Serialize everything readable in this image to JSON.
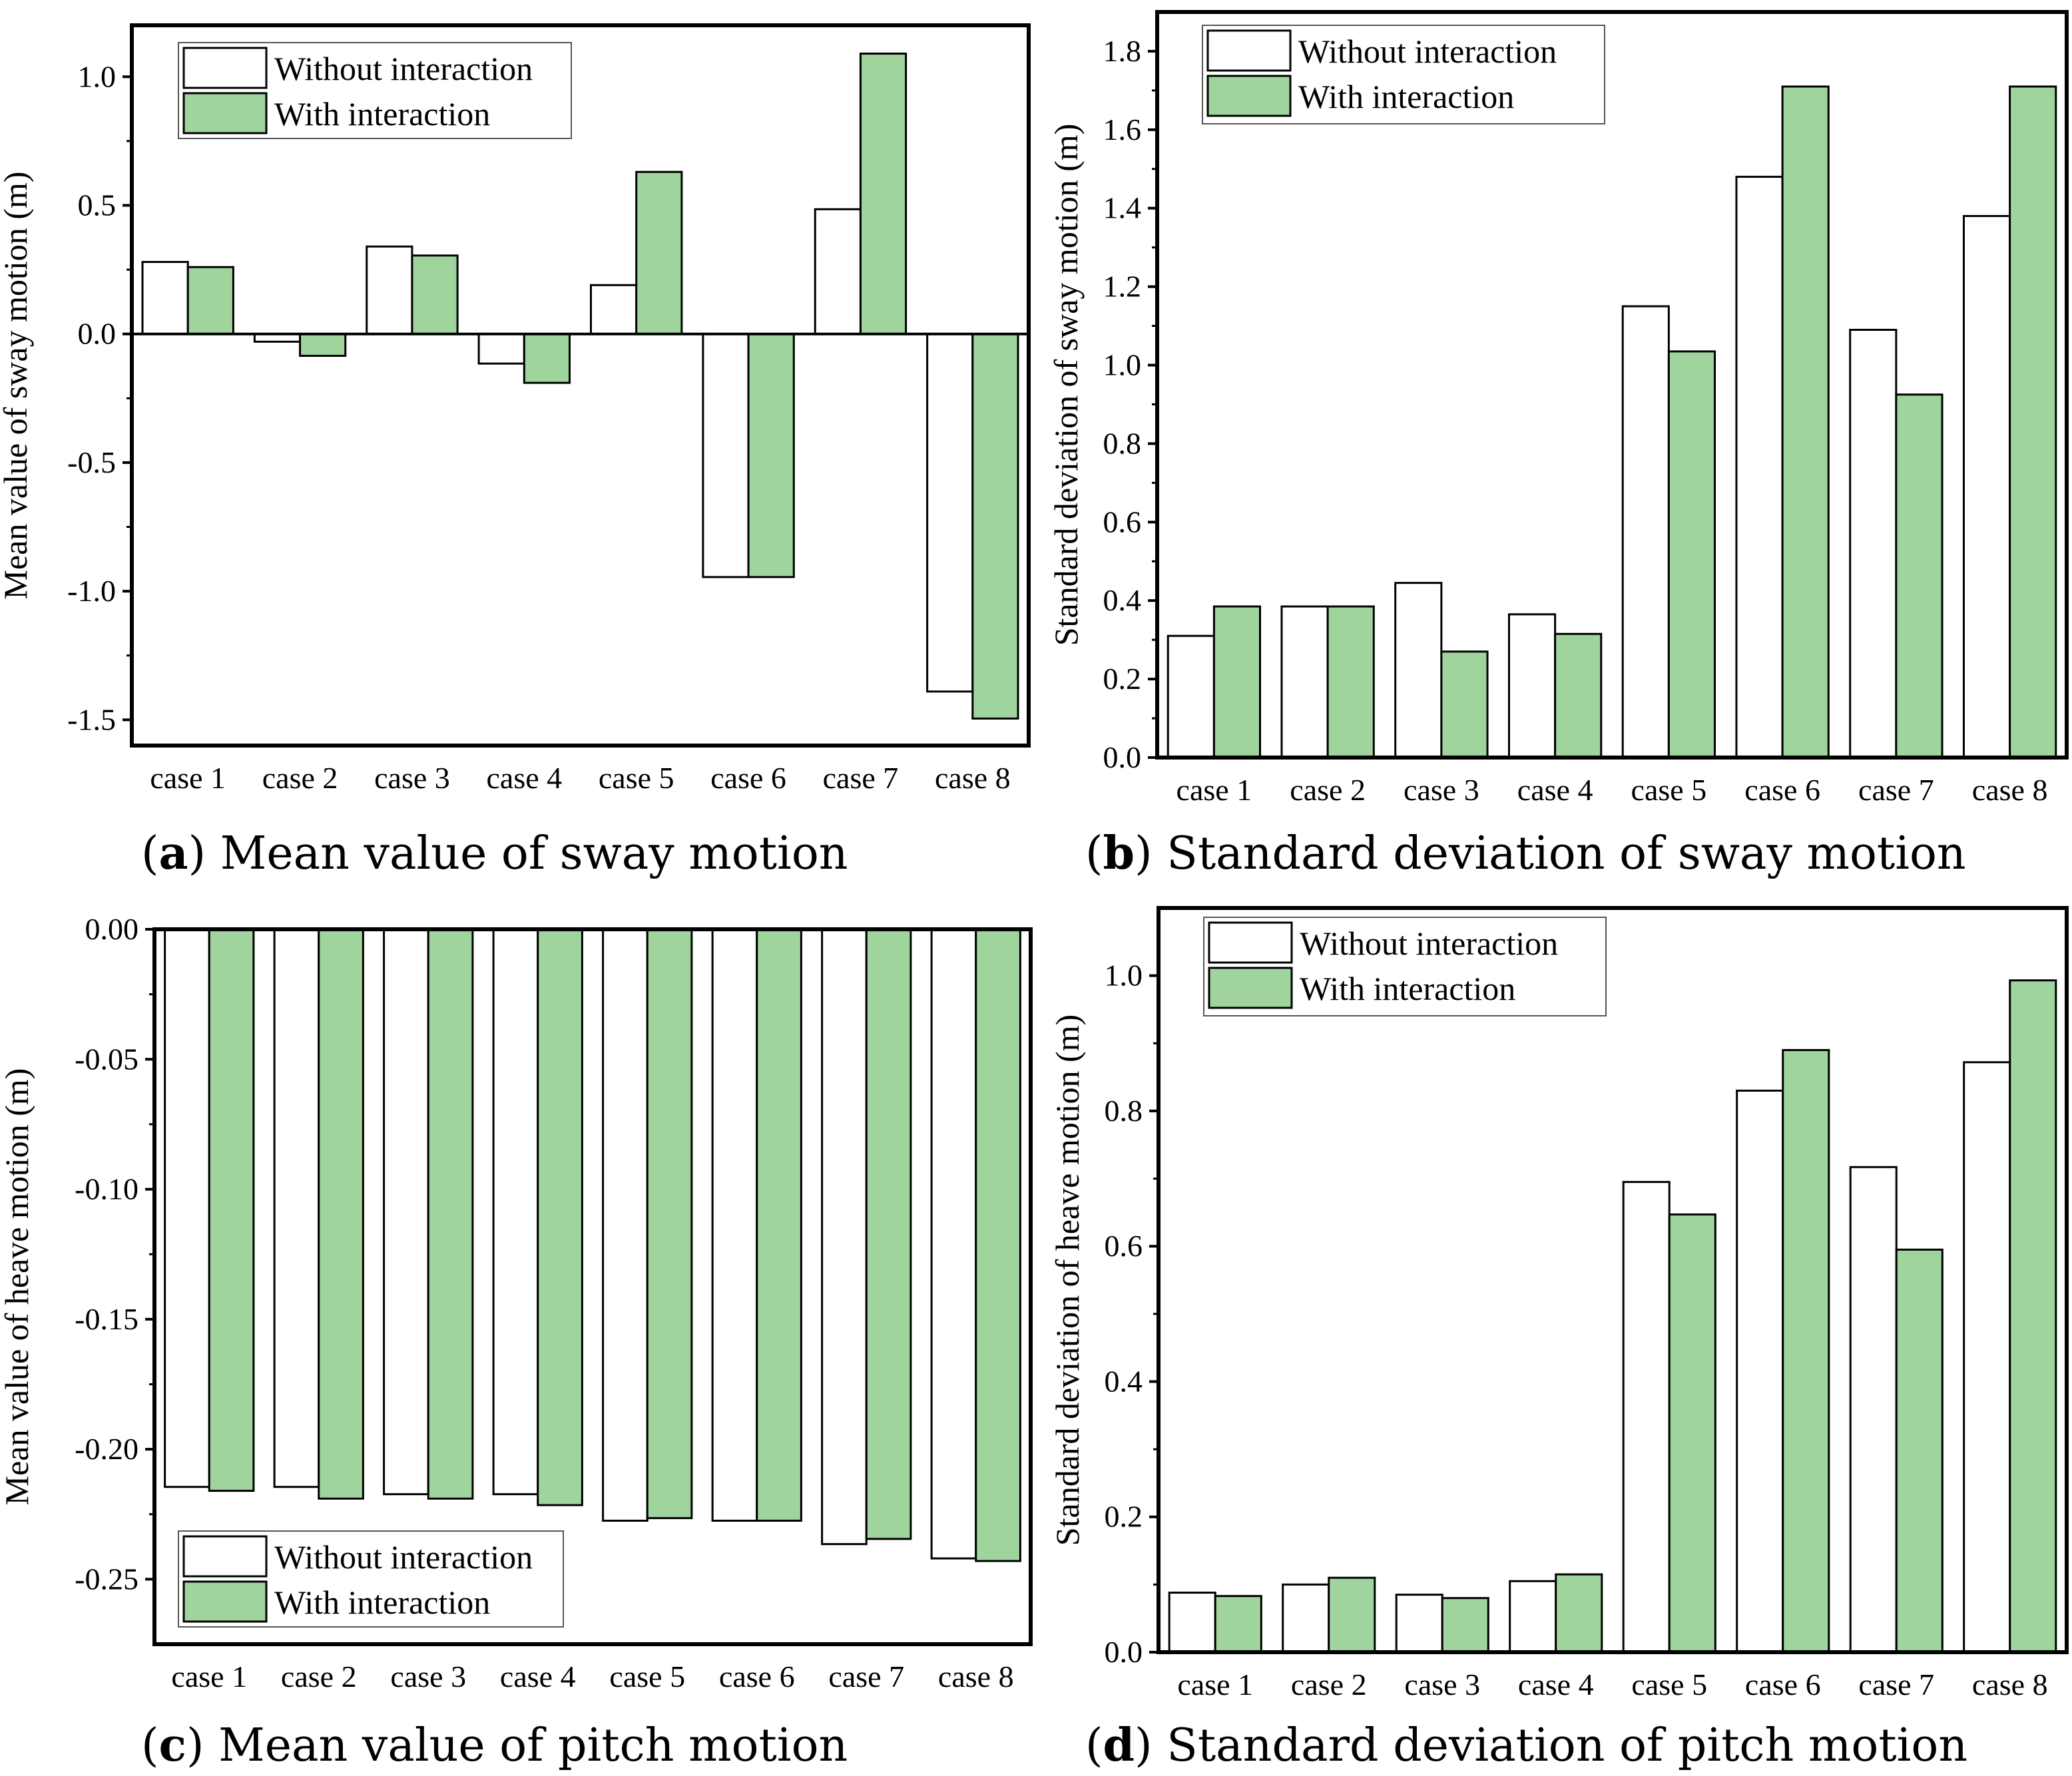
{
  "legend": {
    "without": "Without interaction",
    "with": "With interaction"
  },
  "colors": {
    "without": "#ffffff",
    "with": "#9fd49d",
    "stroke": "#000000"
  },
  "chart_data": [
    {
      "id": "a",
      "type": "bar",
      "caption_letter": "a",
      "caption_text": "Mean value of sway motion",
      "ylabel": "Mean value of sway motion (m)",
      "xlabel": "",
      "categories": [
        "case 1",
        "case 2",
        "case 3",
        "case 4",
        "case 5",
        "case 6",
        "case 7",
        "case 8"
      ],
      "ylim": [
        -1.6,
        1.2
      ],
      "yticks": [
        -1.5,
        -1.0,
        -0.5,
        0.0,
        0.5,
        1.0
      ],
      "ytick_labels": [
        "-1.5",
        "-1.0",
        "-0.5",
        "0.0",
        "0.5",
        "1.0"
      ],
      "legend_position": "top-left",
      "series": [
        {
          "name": "Without interaction",
          "values": [
            0.28,
            -0.03,
            0.34,
            -0.115,
            0.19,
            -0.945,
            0.485,
            -1.39
          ]
        },
        {
          "name": "With interaction",
          "values": [
            0.26,
            -0.085,
            0.305,
            -0.19,
            0.63,
            -0.945,
            1.09,
            -1.495
          ]
        }
      ]
    },
    {
      "id": "b",
      "type": "bar",
      "caption_letter": "b",
      "caption_text": "Standard deviation of sway motion",
      "ylabel": "Standard deviation of sway motion (m)",
      "xlabel": "",
      "categories": [
        "case 1",
        "case 2",
        "case 3",
        "case 4",
        "case 5",
        "case 6",
        "case 7",
        "case 8"
      ],
      "ylim": [
        0.0,
        1.9
      ],
      "yticks": [
        0.0,
        0.2,
        0.4,
        0.6,
        0.8,
        1.0,
        1.2,
        1.4,
        1.6,
        1.8
      ],
      "ytick_labels": [
        "0.0",
        "0.2",
        "0.4",
        "0.6",
        "0.8",
        "1.0",
        "1.2",
        "1.4",
        "1.6",
        "1.8"
      ],
      "legend_position": "top-left",
      "series": [
        {
          "name": "Without interaction",
          "values": [
            0.31,
            0.385,
            0.445,
            0.365,
            1.15,
            1.48,
            1.09,
            1.38
          ]
        },
        {
          "name": "With interaction",
          "values": [
            0.385,
            0.385,
            0.27,
            0.315,
            1.035,
            1.71,
            0.925,
            1.71
          ]
        }
      ]
    },
    {
      "id": "c",
      "type": "bar",
      "caption_letter": "c",
      "caption_text": "Mean value of pitch motion",
      "ylabel": "Mean value of heave motion (m)",
      "xlabel": "",
      "categories": [
        "case 1",
        "case 2",
        "case 3",
        "case 4",
        "case 5",
        "case 6",
        "case 7",
        "case 8"
      ],
      "ylim": [
        -0.275,
        0.0
      ],
      "yticks": [
        -0.25,
        -0.2,
        -0.15,
        -0.1,
        -0.05,
        0.0
      ],
      "ytick_labels": [
        "-0.25",
        "-0.20",
        "-0.15",
        "-0.10",
        "-0.05",
        "0.00"
      ],
      "legend_position": "bottom-left",
      "series": [
        {
          "name": "Without interaction",
          "values": [
            -0.2145,
            -0.2145,
            -0.2173,
            -0.2173,
            -0.2275,
            -0.2275,
            -0.2365,
            -0.242
          ]
        },
        {
          "name": "With interaction",
          "values": [
            -0.216,
            -0.219,
            -0.219,
            -0.2215,
            -0.2265,
            -0.2275,
            -0.2345,
            -0.243
          ]
        }
      ]
    },
    {
      "id": "d",
      "type": "bar",
      "caption_letter": "d",
      "caption_text": "Standard deviation of pitch motion",
      "ylabel": "Standard deviation of heave motion (m)",
      "xlabel": "",
      "categories": [
        "case 1",
        "case 2",
        "case 3",
        "case 4",
        "case 5",
        "case 6",
        "case 7",
        "case 8"
      ],
      "ylim": [
        0.0,
        1.1
      ],
      "yticks": [
        0.0,
        0.2,
        0.4,
        0.6,
        0.8,
        1.0
      ],
      "ytick_labels": [
        "0.0",
        "0.2",
        "0.4",
        "0.6",
        "0.8",
        "1.0"
      ],
      "legend_position": "top-left",
      "series": [
        {
          "name": "Without interaction",
          "values": [
            0.088,
            0.1,
            0.085,
            0.105,
            0.695,
            0.83,
            0.717,
            0.872
          ]
        },
        {
          "name": "With interaction",
          "values": [
            0.083,
            0.11,
            0.08,
            0.115,
            0.647,
            0.89,
            0.595,
            0.993
          ]
        }
      ]
    }
  ]
}
